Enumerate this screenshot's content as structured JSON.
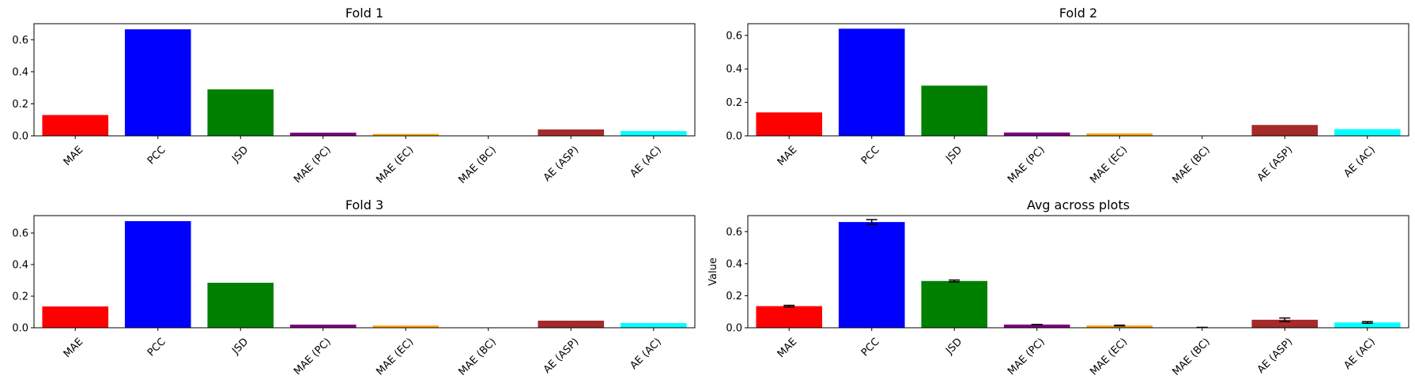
{
  "chart_data": [
    {
      "type": "bar",
      "title": "Fold 1",
      "ylabel": "",
      "categories": [
        "MAE",
        "PCC",
        "JSD",
        "MAE (PC)",
        "MAE (EC)",
        "MAE (BC)",
        "AE (ASP)",
        "AE (AC)"
      ],
      "values": [
        0.13,
        0.665,
        0.29,
        0.02,
        0.012,
        0.002,
        0.04,
        0.03
      ],
      "ylim": [
        0,
        0.7
      ],
      "yticks": [
        "0.0",
        "0.2",
        "0.4",
        "0.6"
      ],
      "grid": false
    },
    {
      "type": "bar",
      "title": "Fold 2",
      "ylabel": "",
      "categories": [
        "MAE",
        "PCC",
        "JSD",
        "MAE (PC)",
        "MAE (EC)",
        "MAE (BC)",
        "AE (ASP)",
        "AE (AC)"
      ],
      "values": [
        0.14,
        0.64,
        0.3,
        0.02,
        0.015,
        0.002,
        0.065,
        0.04
      ],
      "ylim": [
        0,
        0.67
      ],
      "yticks": [
        "0.0",
        "0.2",
        "0.4",
        "0.6"
      ],
      "grid": false
    },
    {
      "type": "bar",
      "title": "Fold 3",
      "ylabel": "",
      "categories": [
        "MAE",
        "PCC",
        "JSD",
        "MAE (PC)",
        "MAE (EC)",
        "MAE (BC)",
        "AE (ASP)",
        "AE (AC)"
      ],
      "values": [
        0.135,
        0.675,
        0.285,
        0.02,
        0.014,
        0.002,
        0.045,
        0.03
      ],
      "ylim": [
        0,
        0.71
      ],
      "yticks": [
        "0.0",
        "0.2",
        "0.4",
        "0.6"
      ],
      "grid": false
    },
    {
      "type": "bar",
      "title": "Avg across plots",
      "ylabel": "Value",
      "categories": [
        "MAE",
        "PCC",
        "JSD",
        "MAE (PC)",
        "MAE (EC)",
        "MAE (BC)",
        "AE (ASP)",
        "AE (AC)"
      ],
      "values": [
        0.135,
        0.66,
        0.292,
        0.02,
        0.014,
        0.002,
        0.05,
        0.033
      ],
      "errors": [
        0.005,
        0.015,
        0.006,
        0.001,
        0.002,
        0.0005,
        0.011,
        0.005
      ],
      "ylim": [
        0,
        0.7
      ],
      "yticks": [
        "0.0",
        "0.2",
        "0.4",
        "0.6"
      ],
      "grid": false
    }
  ],
  "colors": [
    "#ff0000",
    "#0000ff",
    "#008000",
    "#800080",
    "#ffa500",
    "#87ceeb",
    "#a52a2a",
    "#00ffff"
  ]
}
